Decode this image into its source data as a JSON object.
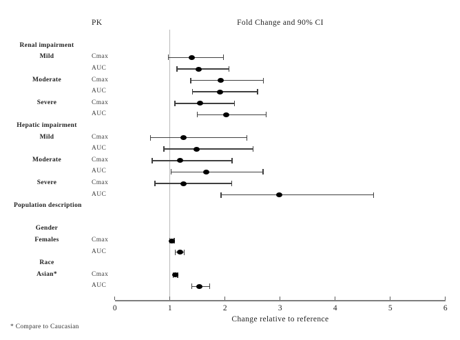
{
  "chart_data": {
    "type": "forest",
    "column_header": "PK",
    "title": "Fold Change and 90% CI",
    "xlabel": "Change relative to reference",
    "xlim": [
      0,
      6
    ],
    "xticks": [
      0,
      1,
      2,
      3,
      4,
      5,
      6
    ],
    "reference_line": 1,
    "footnote": "* Compare to Caucasian",
    "rows": [
      {
        "type": "group",
        "label": "Renal impairment"
      },
      {
        "type": "data",
        "label": "Mild",
        "param": "Cmax",
        "est": 1.4,
        "lo": 0.97,
        "hi": 1.97
      },
      {
        "type": "data",
        "label": "",
        "param": "AUC",
        "est": 1.52,
        "lo": 1.13,
        "hi": 2.07
      },
      {
        "type": "data",
        "label": "Moderate",
        "param": "Cmax",
        "est": 1.92,
        "lo": 1.38,
        "hi": 2.7
      },
      {
        "type": "data",
        "label": "",
        "param": "AUC",
        "est": 1.91,
        "lo": 1.41,
        "hi": 2.59
      },
      {
        "type": "data",
        "label": "Severe",
        "param": "Cmax",
        "est": 1.55,
        "lo": 1.09,
        "hi": 2.17
      },
      {
        "type": "data",
        "label": "",
        "param": "AUC",
        "est": 2.02,
        "lo": 1.5,
        "hi": 2.75
      },
      {
        "type": "group",
        "label": "Hepatic impairment"
      },
      {
        "type": "data",
        "label": "Mild",
        "param": "Cmax",
        "est": 1.25,
        "lo": 0.65,
        "hi": 2.4
      },
      {
        "type": "data",
        "label": "",
        "param": "AUC",
        "est": 1.49,
        "lo": 0.89,
        "hi": 2.51
      },
      {
        "type": "data",
        "label": "Moderate",
        "param": "Cmax",
        "est": 1.19,
        "lo": 0.68,
        "hi": 2.13
      },
      {
        "type": "data",
        "label": "",
        "param": "AUC",
        "est": 1.66,
        "lo": 1.02,
        "hi": 2.69
      },
      {
        "type": "data",
        "label": "Severe",
        "param": "Cmax",
        "est": 1.25,
        "lo": 0.73,
        "hi": 2.12
      },
      {
        "type": "data",
        "label": "",
        "param": "AUC",
        "est": 2.99,
        "lo": 1.93,
        "hi": 4.7
      },
      {
        "type": "group",
        "label": "Population description"
      },
      {
        "type": "spacer",
        "label": ""
      },
      {
        "type": "group",
        "label": "Gender"
      },
      {
        "type": "data",
        "label": "Females",
        "param": "Cmax",
        "est": 1.04,
        "lo": 1.0,
        "hi": 1.08
      },
      {
        "type": "data",
        "label": "",
        "param": "AUC",
        "est": 1.18,
        "lo": 1.1,
        "hi": 1.26
      },
      {
        "type": "group",
        "label": "Race"
      },
      {
        "type": "data",
        "label": "Asian*",
        "param": "Cmax",
        "est": 1.1,
        "lo": 1.06,
        "hi": 1.14
      },
      {
        "type": "data",
        "label": "",
        "param": "AUC",
        "est": 1.53,
        "lo": 1.4,
        "hi": 1.72
      }
    ]
  }
}
